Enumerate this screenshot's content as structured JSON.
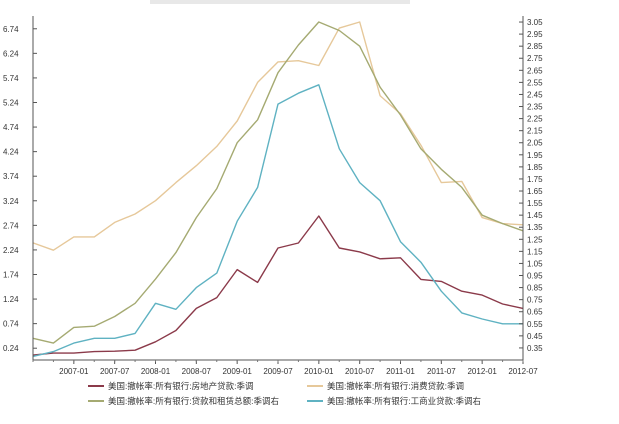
{
  "chart_data": {
    "type": "line",
    "x": [
      "2006-07",
      "2006-10",
      "2007-01",
      "2007-04",
      "2007-07",
      "2007-10",
      "2008-01",
      "2008-04",
      "2008-07",
      "2008-10",
      "2009-01",
      "2009-04",
      "2009-07",
      "2009-10",
      "2010-01",
      "2010-04",
      "2010-07",
      "2010-10",
      "2011-01",
      "2011-04",
      "2011-07",
      "2011-10",
      "2012-01",
      "2012-04",
      "2012-07"
    ],
    "xticks": [
      "2007-01",
      "2007-07",
      "2008-01",
      "2008-07",
      "2009-01",
      "2009-07",
      "2010-01",
      "2010-07",
      "2011-01",
      "2011-07",
      "2012-01",
      "2012-07"
    ],
    "y_left_ticks": [
      "0.24",
      "0.74",
      "1.24",
      "1.74",
      "2.24",
      "2.74",
      "3.24",
      "3.74",
      "4.24",
      "4.74",
      "5.24",
      "5.74",
      "6.24",
      "6.74"
    ],
    "y_right_ticks": [
      "0.35",
      "0.45",
      "0.55",
      "0.65",
      "0.75",
      "0.85",
      "0.95",
      "1.05",
      "1.15",
      "1.25",
      "1.35",
      "1.45",
      "1.55",
      "1.65",
      "1.75",
      "1.85",
      "1.95",
      "2.05",
      "2.15",
      "2.25",
      "2.35",
      "2.45",
      "2.55",
      "2.65",
      "2.75",
      "2.85",
      "2.95",
      "3.05"
    ],
    "ylim_left": [
      0,
      7.0
    ],
    "ylim_right": [
      0.25,
      3.1
    ],
    "grid": false,
    "legend_position": "bottom",
    "series": [
      {
        "name": "美国:撤帐率:所有银行:房地产贷款:季调",
        "axis": "left",
        "color": "#8b3a4a",
        "values": [
          0.1,
          0.14,
          0.14,
          0.17,
          0.18,
          0.2,
          0.37,
          0.6,
          1.05,
          1.27,
          1.84,
          1.58,
          2.28,
          2.38,
          2.93,
          2.28,
          2.2,
          2.06,
          2.08,
          1.64,
          1.6,
          1.4,
          1.32,
          1.14,
          1.05
        ]
      },
      {
        "name": "美国:撤帐率:所有银行:消费贷款:季调",
        "axis": "right",
        "color": "#e6c89a",
        "values": [
          1.22,
          1.16,
          1.27,
          1.27,
          1.39,
          1.46,
          1.57,
          1.72,
          1.86,
          2.02,
          2.23,
          2.55,
          2.72,
          2.73,
          2.69,
          3.0,
          3.05,
          2.44,
          2.29,
          2.03,
          1.72,
          1.73,
          1.43,
          1.38,
          1.37
        ]
      },
      {
        "name": "美国:撤帐率:所有银行:贷款和租赁总额:季调右",
        "axis": "right",
        "color": "#a5aa72",
        "values": [
          0.43,
          0.39,
          0.52,
          0.53,
          0.61,
          0.72,
          0.92,
          1.14,
          1.43,
          1.67,
          2.05,
          2.24,
          2.63,
          2.86,
          3.05,
          2.98,
          2.85,
          2.51,
          2.28,
          2.0,
          1.83,
          1.68,
          1.45,
          1.38,
          1.32
        ]
      },
      {
        "name": "美国:撤帐率:所有银行:工商业贷款:季调右",
        "axis": "right",
        "color": "#5fb2c2",
        "values": [
          0.28,
          0.32,
          0.39,
          0.43,
          0.43,
          0.47,
          0.72,
          0.67,
          0.85,
          0.97,
          1.4,
          1.68,
          2.37,
          2.46,
          2.53,
          2.0,
          1.72,
          1.57,
          1.23,
          1.06,
          0.82,
          0.64,
          0.59,
          0.55,
          0.55
        ]
      }
    ]
  }
}
